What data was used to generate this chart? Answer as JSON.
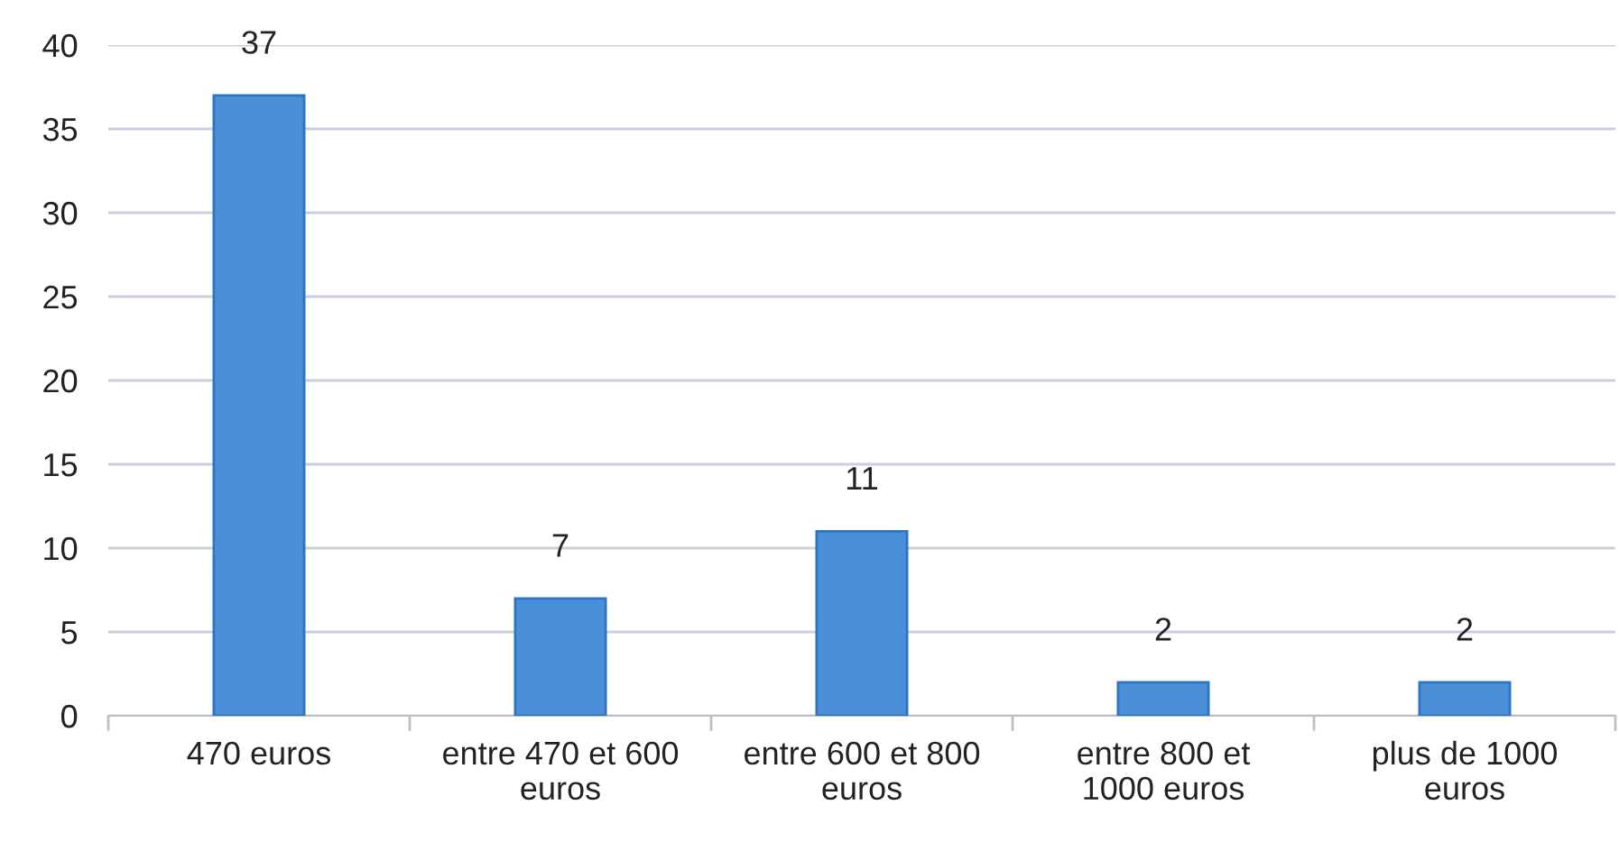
{
  "chart_data": {
    "type": "bar",
    "categories": [
      "470 euros",
      "entre 470 et 600\neuros",
      "entre 600 et 800\neuros",
      "entre 800 et\n1000 euros",
      "plus de 1000\neuros"
    ],
    "values": [
      37,
      7,
      11,
      2,
      2
    ],
    "color": "#4a8fd8",
    "ylim": [
      0,
      40
    ],
    "yticks": [
      0,
      5,
      10,
      15,
      20,
      25,
      30,
      35,
      40
    ],
    "grid": "y",
    "data_labels": true
  }
}
